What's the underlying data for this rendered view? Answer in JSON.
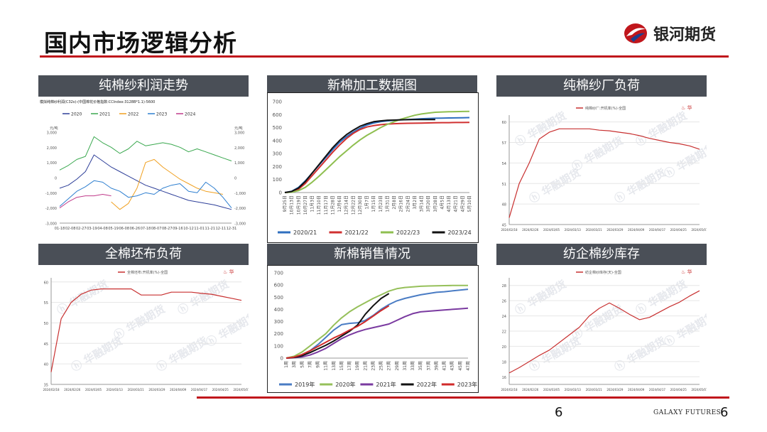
{
  "page": {
    "title": "国内市场逻辑分析",
    "brand": "银河期货",
    "footer_brand": "GALAXY FUTURES",
    "page_number_center": "6",
    "page_number_right": "6"
  },
  "colors": {
    "accent_red": "#c0161c",
    "header_gray": "#4a4f57"
  },
  "panels": [
    {
      "title": "纯棉纱利润走势"
    },
    {
      "title": "新棉加工数据图"
    },
    {
      "title": "纯棉纱厂负荷"
    },
    {
      "title": "全棉坯布负荷"
    },
    {
      "title": "新棉销售情况"
    },
    {
      "title": "纺企棉纱库存"
    }
  ],
  "chart_data": [
    {
      "id": "profit",
      "type": "line",
      "title": "纯棉纱利润走势",
      "note": "模拟纯棉纱利润(C32s)-(中国棉花价格指数:CCIndex:3128B*1.1)-5600",
      "ylabel_left": "元/吨",
      "ylabel_right": "元/吨",
      "ylim": [
        -3000,
        3000
      ],
      "y_ticks": [
        "3,000",
        "2,000",
        "1,000",
        "0",
        "-1,000",
        "-2,000",
        "-3,000"
      ],
      "y_ticks_right": [
        "3,000",
        "2,000",
        "1,000",
        "0",
        "-1,000",
        "-2,000",
        "-3,000"
      ],
      "x_ticks": [
        "01-18",
        "02-08",
        "02-27",
        "03-19",
        "04-08",
        "05-19",
        "06-08",
        "06-26",
        "07-18",
        "08-07",
        "08-27",
        "09-16",
        "10-12",
        "11-01",
        "11-21",
        "12-11",
        "12-31"
      ],
      "series": [
        {
          "name": "2020",
          "color": "#2e3f99",
          "values": [
            -700,
            -500,
            -100,
            400,
            1500,
            1100,
            700,
            400,
            100,
            -200,
            -500,
            -700,
            -900,
            -1100,
            -1300,
            -1500,
            -1600,
            -1700,
            -1800,
            -1950,
            -2100
          ]
        },
        {
          "name": "2021",
          "color": "#3aa84f",
          "values": [
            500,
            800,
            1200,
            1400,
            2700,
            2300,
            2000,
            1600,
            1900,
            2400,
            2100,
            2200,
            2300,
            2200,
            2000,
            1700,
            1900,
            1700,
            1500,
            1300,
            1100
          ]
        },
        {
          "name": "2022",
          "color": "#f0a020",
          "values": [
            null,
            null,
            null,
            null,
            null,
            null,
            -1600,
            -2100,
            -1700,
            -700,
            1000,
            1200,
            700,
            300,
            -100,
            -400,
            -700,
            -900,
            -1000,
            -1100,
            null
          ]
        },
        {
          "name": "2023",
          "color": "#2e7fd0",
          "values": [
            -1900,
            -1400,
            -900,
            -600,
            -200,
            -300,
            -700,
            -900,
            -1300,
            -1200,
            -1000,
            -1100,
            -700,
            -500,
            -400,
            -900,
            -1000,
            -300,
            -700,
            -1300,
            -2000
          ]
        },
        {
          "name": "2024",
          "color": "#c03a8a",
          "values": [
            -2000,
            -1600,
            -1300,
            -1200,
            -1200,
            -1100,
            -1200,
            null,
            null,
            null,
            null,
            null,
            null,
            null,
            null,
            null,
            null,
            null,
            null,
            null,
            null
          ]
        }
      ]
    },
    {
      "id": "processing",
      "type": "line",
      "title": "新棉加工数据图",
      "ylim": [
        0,
        700
      ],
      "y_ticks": [
        "0",
        "100",
        "200",
        "300",
        "400",
        "500",
        "600",
        "700"
      ],
      "x_ticks": [
        "9月25日",
        "10月13日",
        "10月19日",
        "10月27日",
        "11月3日",
        "11月10日",
        "11月17日",
        "11月28日",
        "12月6日",
        "12月14日",
        "12月22日",
        "12月30日",
        "1月7日",
        "1月15日",
        "1月23日",
        "1月31日",
        "2月8日",
        "2月16日",
        "2月24日",
        "3月2日",
        "3月14日",
        "3月20日",
        "3月28日",
        "4月5日",
        "4月13日",
        "4月21日",
        "4月29日",
        "5月10日"
      ],
      "series": [
        {
          "name": "2020/21",
          "color": "#2f6fbf",
          "values": [
            0,
            10,
            40,
            90,
            150,
            210,
            270,
            330,
            385,
            430,
            465,
            495,
            520,
            535,
            545,
            552,
            556,
            560,
            562,
            565,
            568,
            570,
            572,
            573,
            574,
            575,
            576,
            577
          ]
        },
        {
          "name": "2021/22",
          "color": "#d03030",
          "values": [
            0,
            5,
            25,
            70,
            130,
            190,
            250,
            310,
            365,
            415,
            455,
            485,
            505,
            515,
            522,
            527,
            530,
            532,
            533,
            534,
            535,
            536,
            537,
            538,
            538,
            539,
            539,
            540
          ]
        },
        {
          "name": "2022/23",
          "color": "#8fbf50",
          "values": [
            0,
            3,
            15,
            40,
            80,
            125,
            175,
            225,
            275,
            320,
            365,
            405,
            440,
            470,
            500,
            525,
            545,
            565,
            580,
            595,
            605,
            612,
            618,
            620,
            622,
            623,
            624,
            625
          ]
        },
        {
          "name": "2023/24",
          "color": "#111111",
          "values": [
            0,
            8,
            35,
            85,
            150,
            215,
            280,
            345,
            400,
            445,
            480,
            510,
            530,
            545,
            552,
            556,
            558,
            560,
            561,
            562,
            562,
            562,
            562,
            null,
            null,
            null,
            null,
            null
          ]
        }
      ]
    },
    {
      "id": "yarn-load",
      "type": "line",
      "title": "纯棉纱厂负荷",
      "legend": "纯棉纱厂:开机率(%)-全国",
      "ylim": [
        45,
        61
      ],
      "y_ticks": [
        "60",
        "57",
        "54",
        "51",
        "48",
        "45"
      ],
      "x_ticks": [
        "2024/02/18",
        "2024/02/26",
        "2024/03/05",
        "2024/03/13",
        "2024/03/21",
        "2024/03/29",
        "2024/04/09",
        "2024/04/17",
        "2024/04/25",
        "2024/05/07"
      ],
      "series": [
        {
          "name": "纯棉纱厂:开机率(%)-全国",
          "color": "#c83030",
          "values": [
            46,
            51,
            54,
            57.5,
            58.5,
            59,
            59,
            59,
            59,
            58.8,
            58.7,
            58.5,
            58.3,
            58,
            57.6,
            57.3,
            57,
            56.8,
            56.5,
            56
          ]
        }
      ]
    },
    {
      "id": "fabric-load",
      "type": "line",
      "title": "全棉坯布负荷",
      "legend": "全棉坯布:开机率(%)-全国",
      "ylim": [
        35,
        61
      ],
      "y_ticks": [
        "60",
        "55",
        "50",
        "45",
        "40",
        "35"
      ],
      "x_ticks": [
        "2024/02/18",
        "2024/02/26",
        "2024/03/05",
        "2024/03/13",
        "2024/03/21",
        "2024/03/29",
        "2024/04/09",
        "2024/04/17",
        "2024/04/25",
        "2024/05/07"
      ],
      "series": [
        {
          "name": "全棉坯布:开机率(%)-全国",
          "color": "#c83030",
          "values": [
            38,
            51,
            55,
            57,
            58,
            58.3,
            58.3,
            58.3,
            58.3,
            56.8,
            56.8,
            56.8,
            57.5,
            57.5,
            57.5,
            57.2,
            57,
            56.5,
            56,
            55.5
          ]
        }
      ]
    },
    {
      "id": "sales",
      "type": "line",
      "title": "新棉销售情况",
      "ylim": [
        0,
        700
      ],
      "y_ticks": [
        "0",
        "100",
        "200",
        "300",
        "400",
        "500",
        "600",
        "700"
      ],
      "x_ticks": [
        "1周",
        "3周",
        "5周",
        "7周",
        "9周",
        "11周",
        "13周",
        "15周",
        "17周",
        "19周",
        "21周",
        "23周",
        "25周",
        "27周",
        "29周",
        "31周",
        "33周",
        "35周",
        "37周",
        "39周",
        "41周",
        "43周",
        "45周",
        "47周"
      ],
      "series": [
        {
          "name": "2019年",
          "color": "#4a7cc4",
          "values": [
            0,
            5,
            20,
            60,
            110,
            170,
            230,
            275,
            285,
            290,
            310,
            350,
            400,
            440,
            470,
            490,
            505,
            520,
            530,
            540,
            545,
            552,
            558,
            565
          ]
        },
        {
          "name": "2020年",
          "color": "#96c05a",
          "values": [
            0,
            15,
            50,
            100,
            150,
            200,
            270,
            330,
            380,
            420,
            455,
            490,
            520,
            550,
            570,
            580,
            585,
            590,
            592,
            594,
            595,
            596,
            596,
            597
          ]
        },
        {
          "name": "2021年",
          "color": "#7a3aa0",
          "values": [
            0,
            3,
            10,
            25,
            50,
            80,
            120,
            160,
            190,
            215,
            235,
            250,
            265,
            280,
            310,
            340,
            365,
            380,
            385,
            390,
            395,
            400,
            405,
            410
          ]
        },
        {
          "name": "2022年",
          "color": "#111111",
          "values": [
            0,
            5,
            20,
            45,
            75,
            105,
            140,
            180,
            220,
            270,
            360,
            430,
            490,
            530,
            null,
            null,
            null,
            null,
            null,
            null,
            null,
            null,
            null,
            null
          ]
        },
        {
          "name": "2023年",
          "color": "#d02a2a",
          "values": [
            0,
            8,
            30,
            60,
            95,
            130,
            165,
            195,
            230,
            260,
            300,
            345,
            390,
            430,
            null,
            null,
            null,
            null,
            null,
            null,
            null,
            null,
            null,
            null
          ]
        }
      ]
    },
    {
      "id": "yarn-inventory",
      "type": "line",
      "title": "纺企棉纱库存",
      "legend": "纺企棉纱库存(天)-全国",
      "ylim": [
        15,
        29
      ],
      "y_ticks": [
        "28",
        "26",
        "24",
        "22",
        "20",
        "18",
        "16"
      ],
      "x_ticks": [
        "2024/02/18",
        "2024/02/26",
        "2024/03/05",
        "2024/03/13",
        "2024/03/21",
        "2024/03/29",
        "2024/04/09",
        "2024/04/17",
        "2024/04/25",
        "2024/05/07"
      ],
      "series": [
        {
          "name": "纺企棉纱库存(天)-全国",
          "color": "#c83030",
          "values": [
            16.5,
            17.2,
            18,
            18.8,
            19.5,
            20.5,
            21.5,
            22.5,
            24,
            25,
            25.7,
            25,
            24.2,
            23.5,
            23.8,
            24.5,
            25.2,
            25.8,
            26.6,
            27.3
          ]
        }
      ]
    }
  ]
}
